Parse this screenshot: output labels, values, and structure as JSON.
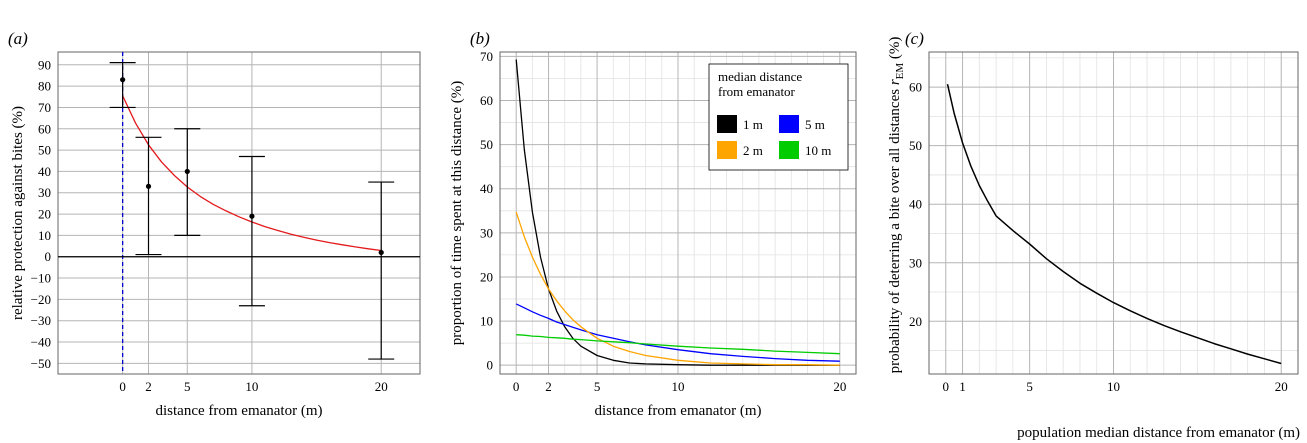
{
  "chart_data": [
    {
      "panel": "(a)",
      "type": "scatter",
      "xlabel": "distance from emanator (m)",
      "ylabel": "relative protection against bites (%)",
      "xlim": [
        -5,
        23
      ],
      "ylim": [
        -55,
        96
      ],
      "xticks": [
        0,
        2,
        5,
        10,
        20
      ],
      "yticks": [
        -50,
        -40,
        -30,
        -20,
        -10,
        0,
        10,
        20,
        30,
        40,
        50,
        60,
        70,
        80,
        90
      ],
      "grid": true,
      "points": [
        {
          "x": 0,
          "y": 83,
          "lower": 70,
          "upper": 91
        },
        {
          "x": 2,
          "y": 33,
          "lower": 1,
          "upper": 56
        },
        {
          "x": 5,
          "y": 40,
          "lower": 10,
          "upper": 60
        },
        {
          "x": 10,
          "y": 19,
          "lower": -23,
          "upper": 47
        },
        {
          "x": 20,
          "y": 2,
          "lower": -48,
          "upper": 35
        }
      ],
      "fitted_curve": {
        "color": "#e41a1c",
        "x": [
          0,
          1,
          2,
          3,
          4,
          5,
          6,
          7,
          8,
          9,
          10,
          11,
          12,
          13,
          14,
          15,
          16,
          17,
          18,
          19,
          20
        ],
        "y": [
          75.5,
          62.6,
          52.5,
          44.5,
          38.1,
          32.7,
          28.3,
          24.6,
          21.5,
          18.7,
          16.3,
          14.1,
          12.3,
          10.6,
          9.1,
          7.8,
          6.6,
          5.6,
          4.6,
          3.7,
          2.9
        ]
      },
      "reference_lines": [
        {
          "axis": "x",
          "value": 0,
          "style": "dashed",
          "color": "#0000cc"
        },
        {
          "axis": "y",
          "value": 0,
          "style": "solid",
          "color": "#000000"
        }
      ]
    },
    {
      "panel": "(b)",
      "type": "line",
      "xlabel": "distance from emanator (m)",
      "ylabel": "proportion of time spent at this distance (%)",
      "xlim": [
        -1,
        21
      ],
      "ylim": [
        -2,
        71
      ],
      "xticks": [
        0,
        2,
        5,
        10,
        20
      ],
      "yticks": [
        0,
        10,
        20,
        30,
        40,
        50,
        60,
        70
      ],
      "grid": true,
      "legend": {
        "title_lines": [
          "median distance",
          "from emanator"
        ],
        "placement": "top-right"
      },
      "x": [
        0,
        0.5,
        1,
        1.5,
        2,
        2.5,
        3,
        3.5,
        4,
        5,
        6,
        7,
        8,
        10,
        12,
        14,
        16,
        18,
        20
      ],
      "series": [
        {
          "name": "1 m",
          "color": "#000000",
          "values": [
            69.3,
            48.9,
            34.7,
            24.5,
            17.3,
            12.3,
            8.7,
            6.1,
            4.3,
            2.2,
            1.1,
            0.5,
            0.3,
            0.1,
            0.0,
            0.0,
            0.0,
            0.0,
            0.0
          ]
        },
        {
          "name": "5 m",
          "color": "#0000ff",
          "values": [
            13.9,
            13.0,
            12.1,
            11.3,
            10.6,
            9.8,
            9.2,
            8.6,
            8.0,
            6.9,
            6.1,
            5.3,
            4.6,
            3.5,
            2.6,
            2.0,
            1.5,
            1.1,
            0.9
          ]
        },
        {
          "name": "2 m",
          "color": "#ffa500",
          "values": [
            34.7,
            29.1,
            24.5,
            20.6,
            17.3,
            14.6,
            12.3,
            10.3,
            8.7,
            6.1,
            4.3,
            3.1,
            2.2,
            1.1,
            0.5,
            0.3,
            0.1,
            0.1,
            0.0
          ]
        },
        {
          "name": "10 m",
          "color": "#00cc00",
          "values": [
            6.9,
            6.8,
            6.6,
            6.5,
            6.3,
            6.2,
            6.1,
            5.9,
            5.8,
            5.5,
            5.3,
            5.1,
            4.8,
            4.3,
            3.9,
            3.6,
            3.2,
            2.9,
            2.6
          ]
        }
      ]
    },
    {
      "panel": "(c)",
      "type": "line",
      "xlabel": "population median distance from emanator (m)",
      "ylabel": "probability of deterring a bite over all distances r_EM (%)",
      "ylabel_main": "probability of deterring a bite over all distances ",
      "ylabel_symbol": "r",
      "ylabel_subscript": "EM",
      "ylabel_unit": " (%)",
      "xlim": [
        -1,
        21
      ],
      "ylim": [
        11,
        66
      ],
      "xticks": [
        0,
        1,
        5,
        10,
        20
      ],
      "yticks": [
        20,
        30,
        40,
        50,
        60
      ],
      "grid": true,
      "series": [
        {
          "name": "",
          "color": "#000000",
          "x": [
            0.1,
            0.5,
            1,
            1.5,
            2,
            2.5,
            3,
            4,
            5,
            6,
            7,
            8,
            9,
            10,
            11,
            12,
            13,
            14,
            15,
            16,
            17,
            18,
            19,
            20
          ],
          "values": [
            60.5,
            55.5,
            50.5,
            46.5,
            43.2,
            40.5,
            38.0,
            35.5,
            33.2,
            30.7,
            28.5,
            26.5,
            24.8,
            23.2,
            21.8,
            20.5,
            19.3,
            18.2,
            17.2,
            16.2,
            15.3,
            14.4,
            13.6,
            12.8
          ]
        }
      ]
    }
  ]
}
